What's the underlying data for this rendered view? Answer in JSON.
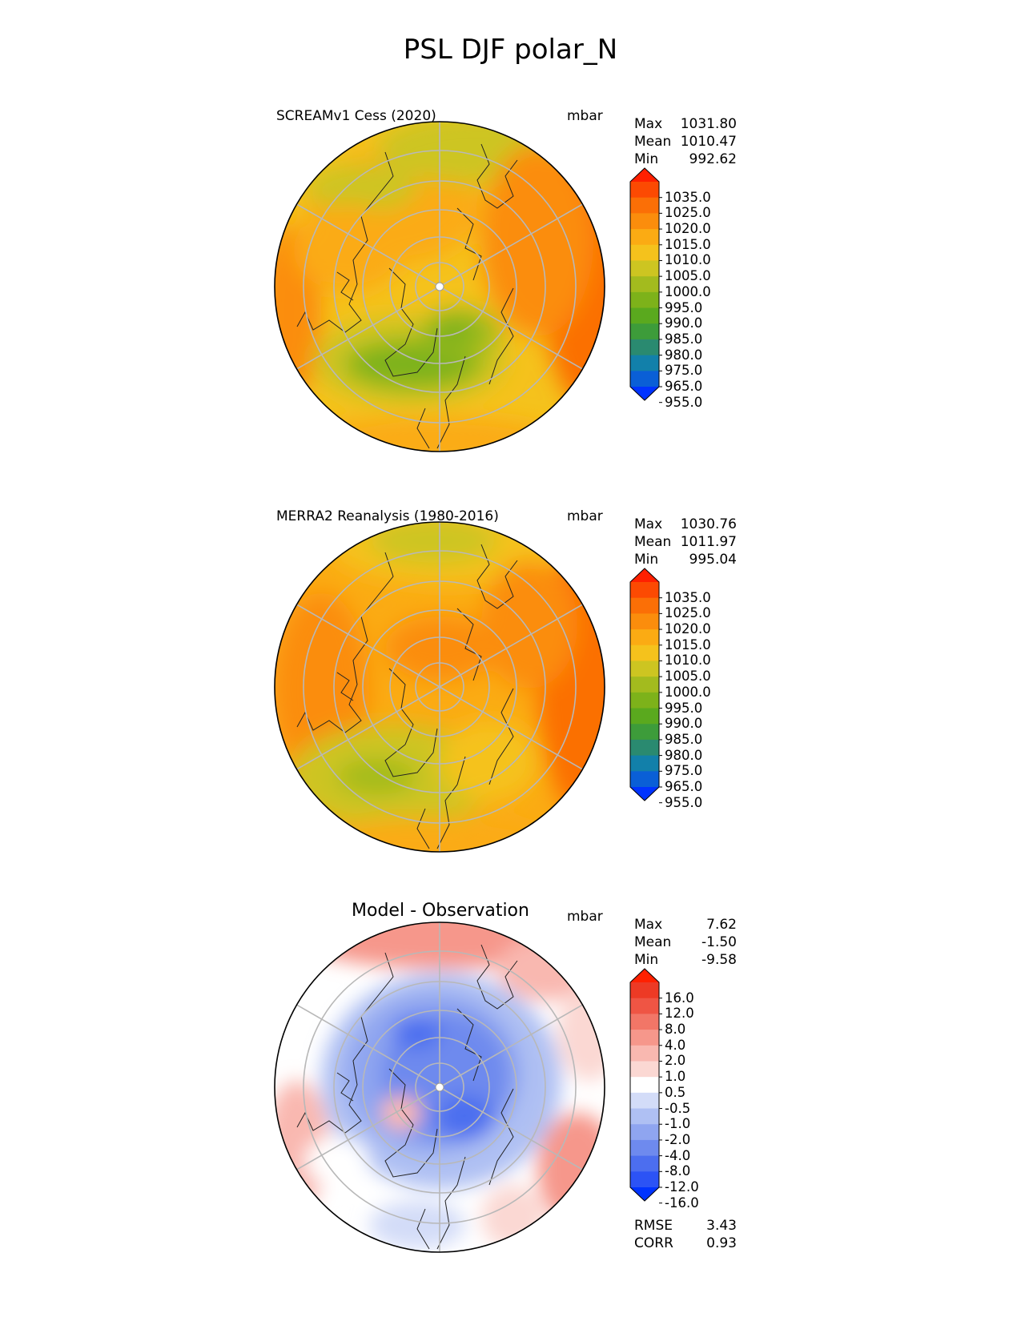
{
  "title": "PSL DJF polar_N",
  "panels": [
    {
      "title": "SCREAMv1 Cess (2020)",
      "unit": "mbar",
      "stats": [
        {
          "label": "Max",
          "value": "1031.80"
        },
        {
          "label": "Mean",
          "value": "1010.47"
        },
        {
          "label": "Min",
          "value": "992.62"
        }
      ],
      "colorbar_ticks": [
        "1035.0",
        "1025.0",
        "1020.0",
        "1015.0",
        "1010.0",
        "1005.0",
        "1000.0",
        "995.0",
        "990.0",
        "985.0",
        "980.0",
        "975.0",
        "965.0",
        "955.0"
      ]
    },
    {
      "title": "MERRA2 Reanalysis (1980-2016)",
      "unit": "mbar",
      "stats": [
        {
          "label": "Max",
          "value": "1030.76"
        },
        {
          "label": "Mean",
          "value": "1011.97"
        },
        {
          "label": "Min",
          "value": "995.04"
        }
      ],
      "colorbar_ticks": [
        "1035.0",
        "1025.0",
        "1020.0",
        "1015.0",
        "1010.0",
        "1005.0",
        "1000.0",
        "995.0",
        "990.0",
        "985.0",
        "980.0",
        "975.0",
        "965.0",
        "955.0"
      ]
    },
    {
      "title": "Model - Observation",
      "unit": "mbar",
      "stats": [
        {
          "label": "Max",
          "value": "7.62"
        },
        {
          "label": "Mean",
          "value": "-1.50"
        },
        {
          "label": "Min",
          "value": "-9.58"
        }
      ],
      "colorbar_ticks": [
        "16.0",
        "12.0",
        "8.0",
        "4.0",
        "2.0",
        "1.0",
        "0.5",
        "-0.5",
        "-1.0",
        "-2.0",
        "-4.0",
        "-8.0",
        "-12.0",
        "-16.0"
      ],
      "extra_stats": [
        {
          "label": "RMSE",
          "value": "3.43"
        },
        {
          "label": "CORR",
          "value": "0.93"
        }
      ]
    }
  ],
  "colors": {
    "abs": [
      "#0033ff",
      "#0a5fd6",
      "#1280aa",
      "#2a8a70",
      "#3d9c3a",
      "#5aa91e",
      "#7db21a",
      "#a3bb1e",
      "#cdc521",
      "#f5c21c",
      "#fbab13",
      "#fb8d0c",
      "#fb6f06",
      "#fc4a02",
      "#ff2000"
    ],
    "diff": [
      "#0033ff",
      "#2c53f5",
      "#4c6eef",
      "#6e8aee",
      "#8fa5f0",
      "#afc0f3",
      "#d3dcf8",
      "#ffffff",
      "#fbd8d3",
      "#f9b8b0",
      "#f6978b",
      "#f27667",
      "#ef5544",
      "#ed3a25",
      "#ff2000"
    ]
  },
  "chart_data": [
    {
      "type": "heatmap",
      "title": "SCREAMv1 Cess (2020)",
      "projection": "north polar stereographic",
      "unit": "mbar",
      "levels": [
        955,
        965,
        975,
        980,
        985,
        990,
        995,
        1000,
        1005,
        1010,
        1015,
        1020,
        1025,
        1035
      ],
      "max": 1031.8,
      "mean": 1010.47,
      "min": 992.62
    },
    {
      "type": "heatmap",
      "title": "MERRA2 Reanalysis (1980-2016)",
      "projection": "north polar stereographic",
      "unit": "mbar",
      "levels": [
        955,
        965,
        975,
        980,
        985,
        990,
        995,
        1000,
        1005,
        1010,
        1015,
        1020,
        1025,
        1035
      ],
      "max": 1030.76,
      "mean": 1011.97,
      "min": 995.04
    },
    {
      "type": "heatmap",
      "title": "Model - Observation",
      "projection": "north polar stereographic",
      "unit": "mbar",
      "levels": [
        -16,
        -12,
        -8,
        -4,
        -2,
        -1,
        -0.5,
        0.5,
        1,
        2,
        4,
        8,
        12,
        16
      ],
      "max": 7.62,
      "mean": -1.5,
      "min": -9.58,
      "rmse": 3.43,
      "corr": 0.93
    }
  ]
}
